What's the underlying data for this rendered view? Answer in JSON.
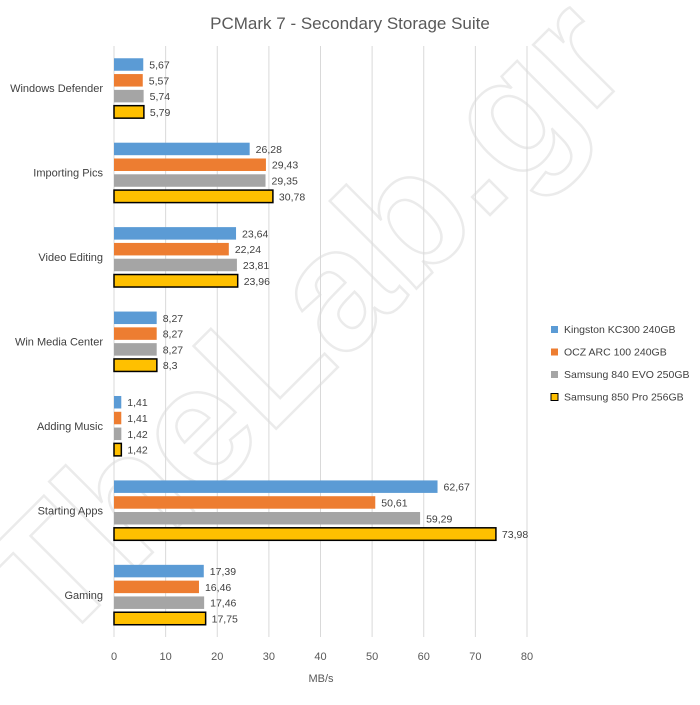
{
  "chart_data": {
    "type": "bar",
    "orientation": "horizontal",
    "title": "PCMark 7 - Secondary Storage Suite",
    "xlabel": "MB/s",
    "ylabel": "",
    "xlim": [
      0,
      80
    ],
    "xticks": [
      0,
      10,
      20,
      30,
      40,
      50,
      60,
      70,
      80
    ],
    "grid": "vertical",
    "legend_position": "right",
    "watermark": "TheLab.gr",
    "categories": [
      "Windows Defender",
      "Importing Pics",
      "Video Editing",
      "Win Media Center",
      "Adding Music",
      "Starting Apps",
      "Gaming"
    ],
    "series": [
      {
        "name": "Kingston KC300 240GB",
        "color": "#5b9bd5",
        "outlined": false,
        "values": [
          5.67,
          26.28,
          23.64,
          8.27,
          1.41,
          62.67,
          17.39
        ],
        "labels": [
          "5,67",
          "26,28",
          "23,64",
          "8,27",
          "1,41",
          "62,67",
          "17,39"
        ]
      },
      {
        "name": "OCZ ARC 100 240GB",
        "color": "#ed7d31",
        "outlined": false,
        "values": [
          5.57,
          29.43,
          22.24,
          8.27,
          1.41,
          50.61,
          16.46
        ],
        "labels": [
          "5,57",
          "29,43",
          "22,24",
          "8,27",
          "1,41",
          "50,61",
          "16,46"
        ]
      },
      {
        "name": "Samsung 840 EVO 250GB",
        "color": "#a5a5a5",
        "outlined": false,
        "values": [
          5.74,
          29.35,
          23.81,
          8.27,
          1.42,
          59.29,
          17.46
        ],
        "labels": [
          "5,74",
          "29,35",
          "23,81",
          "8,27",
          "1,42",
          "59,29",
          "17,46"
        ]
      },
      {
        "name": "Samsung 850 Pro 256GB",
        "color": "#ffc000",
        "outlined": true,
        "values": [
          5.79,
          30.78,
          23.96,
          8.3,
          1.42,
          73.98,
          17.75
        ],
        "labels": [
          "5,79",
          "30,78",
          "23,96",
          "8,3",
          "1,42",
          "73,98",
          "17,75"
        ]
      }
    ]
  }
}
